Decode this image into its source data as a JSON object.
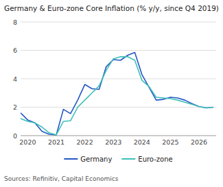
{
  "chart_data": {
    "type": "line",
    "title": "Germany & Euro-zone Core Inflation (% y/y, since Q4 2019)",
    "annotations": [
      "Sources: Refinitiv, Capital Economics"
    ],
    "x": [
      2019.75,
      2020.0,
      2020.25,
      2020.5,
      2020.75,
      2021.0,
      2021.25,
      2021.5,
      2021.75,
      2022.0,
      2022.25,
      2022.5,
      2022.75,
      2023.0,
      2023.25,
      2023.5,
      2023.75,
      2024.0,
      2024.25,
      2024.5,
      2024.75,
      2025.0,
      2025.25,
      2025.5,
      2025.75,
      2026.0,
      2026.25,
      2026.5
    ],
    "series": [
      {
        "name": "Germany",
        "color": "#2457c5",
        "values": [
          1.6,
          1.1,
          0.9,
          0.3,
          0.1,
          0.05,
          1.85,
          1.55,
          2.5,
          3.6,
          3.3,
          3.25,
          4.85,
          5.35,
          5.3,
          5.65,
          5.85,
          4.3,
          3.4,
          2.5,
          2.55,
          2.7,
          2.65,
          2.5,
          2.25,
          2.05,
          1.95,
          2.0
        ]
      },
      {
        "name": "Euro-zone",
        "color": "#3dbfb8",
        "values": [
          1.2,
          1.0,
          0.9,
          0.6,
          0.2,
          0.05,
          1.0,
          1.05,
          2.0,
          2.5,
          3.0,
          3.5,
          4.6,
          5.4,
          5.55,
          5.55,
          5.3,
          3.9,
          3.45,
          2.7,
          2.65,
          2.6,
          2.5,
          2.35,
          2.2,
          2.05,
          1.95,
          2.0
        ]
      }
    ],
    "xlim": [
      2019.75,
      2026.6
    ],
    "xticks": [
      2020,
      2021,
      2022,
      2023,
      2024,
      2025,
      2026
    ],
    "ylim": [
      0,
      8
    ],
    "yticks": [
      0,
      2,
      4,
      6,
      8
    ],
    "grid": true,
    "legend": "bottom"
  }
}
